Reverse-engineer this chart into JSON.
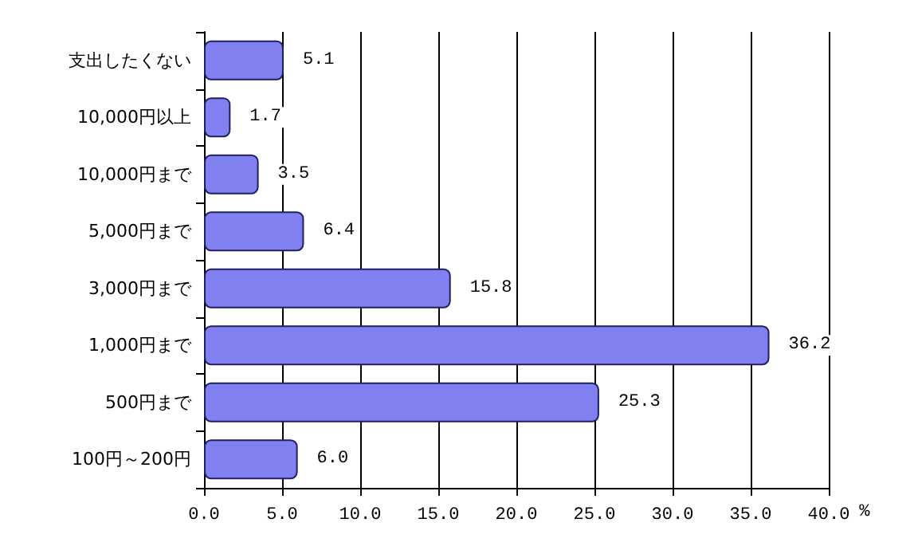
{
  "chart_data": {
    "type": "bar",
    "orientation": "horizontal",
    "xlabel": "%",
    "categories": [
      "支出したくない",
      "10,000円以上",
      "10,000円まで",
      "5,000円まで",
      "3,000円まで",
      "1,000円まで",
      "500円まで",
      "100円～200円"
    ],
    "values": [
      5.1,
      1.7,
      3.5,
      6.4,
      15.8,
      36.2,
      25.3,
      6.0
    ],
    "value_labels": [
      "5.1",
      "1.7",
      "3.5",
      "6.4",
      "15.8",
      "36.2",
      "25.3",
      "6.0"
    ],
    "color": "#8080f0",
    "xlim": [
      0,
      40
    ],
    "xticks": [
      {
        "value": 0,
        "label": "0.0"
      },
      {
        "value": 5,
        "label": "5.0"
      },
      {
        "value": 10,
        "label": "10.0"
      },
      {
        "value": 15,
        "label": "15.0"
      },
      {
        "value": 20,
        "label": "20.0"
      },
      {
        "value": 25,
        "label": "25.0"
      },
      {
        "value": 30,
        "label": "30.0"
      },
      {
        "value": 35,
        "label": "35.0"
      },
      {
        "value": 40,
        "label": "40.0"
      }
    ],
    "grid": "x"
  }
}
